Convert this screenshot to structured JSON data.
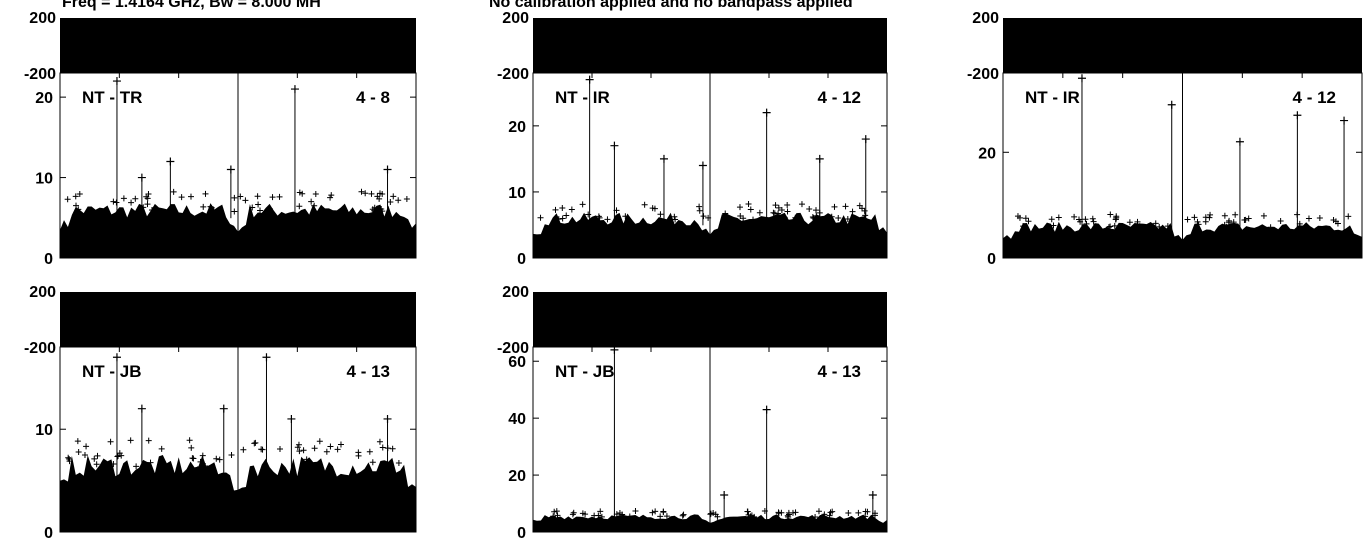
{
  "header": {
    "left": "Freq = 1.4164 GHz, Bw = 8.000 MH",
    "right": "No calibration applied and no bandpass applied"
  },
  "chart_data": [
    {
      "type": "scatter",
      "baseline": "NT - TR",
      "channel_range": "4 - 8",
      "phase_ticks": [
        "200",
        "-200"
      ],
      "amp_ticks": [
        "20",
        "10",
        "0"
      ],
      "amp_ylim": [
        0,
        23
      ],
      "typical_amp": 5.5,
      "spikes": [
        {
          "x": 0.16,
          "y": 22
        },
        {
          "x": 0.23,
          "y": 10
        },
        {
          "x": 0.31,
          "y": 12
        },
        {
          "x": 0.48,
          "y": 11
        },
        {
          "x": 0.66,
          "y": 21
        },
        {
          "x": 0.92,
          "y": 11
        }
      ]
    },
    {
      "type": "scatter",
      "baseline": "NT - IR",
      "channel_range": "4 - 12",
      "phase_ticks": [
        "200",
        "-200"
      ],
      "amp_ticks": [
        "20",
        "10",
        "0"
      ],
      "amp_ylim": [
        0,
        28
      ],
      "typical_amp": 5.5,
      "spikes": [
        {
          "x": 0.16,
          "y": 27
        },
        {
          "x": 0.23,
          "y": 17
        },
        {
          "x": 0.37,
          "y": 15
        },
        {
          "x": 0.48,
          "y": 14
        },
        {
          "x": 0.66,
          "y": 22
        },
        {
          "x": 0.81,
          "y": 15
        },
        {
          "x": 0.94,
          "y": 18
        }
      ]
    },
    {
      "type": "scatter",
      "baseline": "NT - IR",
      "channel_range": "4 - 12",
      "phase_ticks": [
        "200",
        "-200"
      ],
      "amp_ticks": [
        "20",
        "0"
      ],
      "amp_ylim": [
        0,
        35
      ],
      "typical_amp": 5.5,
      "spikes": [
        {
          "x": 0.22,
          "y": 34
        },
        {
          "x": 0.47,
          "y": 29
        },
        {
          "x": 0.66,
          "y": 22
        },
        {
          "x": 0.82,
          "y": 27
        },
        {
          "x": 0.95,
          "y": 26
        }
      ]
    },
    {
      "type": "scatter",
      "baseline": "NT - JB",
      "channel_range": "4 - 13",
      "phase_ticks": [
        "200",
        "-200"
      ],
      "amp_ticks": [
        "10",
        "0"
      ],
      "amp_ylim": [
        0,
        18
      ],
      "typical_amp": 6,
      "spikes": [
        {
          "x": 0.16,
          "y": 17
        },
        {
          "x": 0.23,
          "y": 12
        },
        {
          "x": 0.46,
          "y": 12
        },
        {
          "x": 0.58,
          "y": 17
        },
        {
          "x": 0.65,
          "y": 11
        },
        {
          "x": 0.92,
          "y": 11
        }
      ]
    },
    {
      "type": "scatter",
      "baseline": "NT - JB",
      "channel_range": "4 - 13",
      "phase_ticks": [
        "200",
        "-200"
      ],
      "amp_ticks": [
        "60",
        "40",
        "20",
        "0"
      ],
      "amp_ylim": [
        0,
        65
      ],
      "typical_amp": 5,
      "spikes": [
        {
          "x": 0.23,
          "y": 64
        },
        {
          "x": 0.66,
          "y": 43
        },
        {
          "x": 0.54,
          "y": 13
        },
        {
          "x": 0.96,
          "y": 13
        }
      ]
    }
  ]
}
